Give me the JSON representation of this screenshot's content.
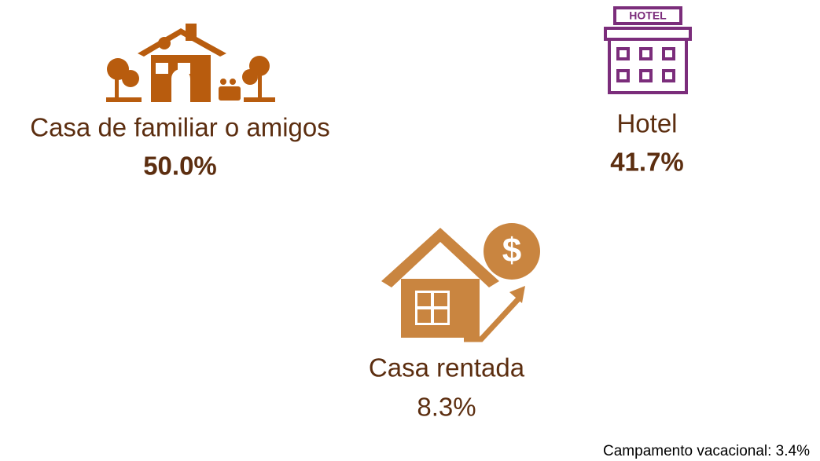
{
  "items": [
    {
      "label": "Casa de familiar o amigos",
      "value": "50.0%"
    },
    {
      "label": "Hotel",
      "value": "41.7%",
      "icon_text": "HOTEL"
    },
    {
      "label": "Casa rentada",
      "value": "8.3%",
      "icon_text": "$"
    }
  ],
  "footnote": "Campamento vacacional: 3.4%"
}
